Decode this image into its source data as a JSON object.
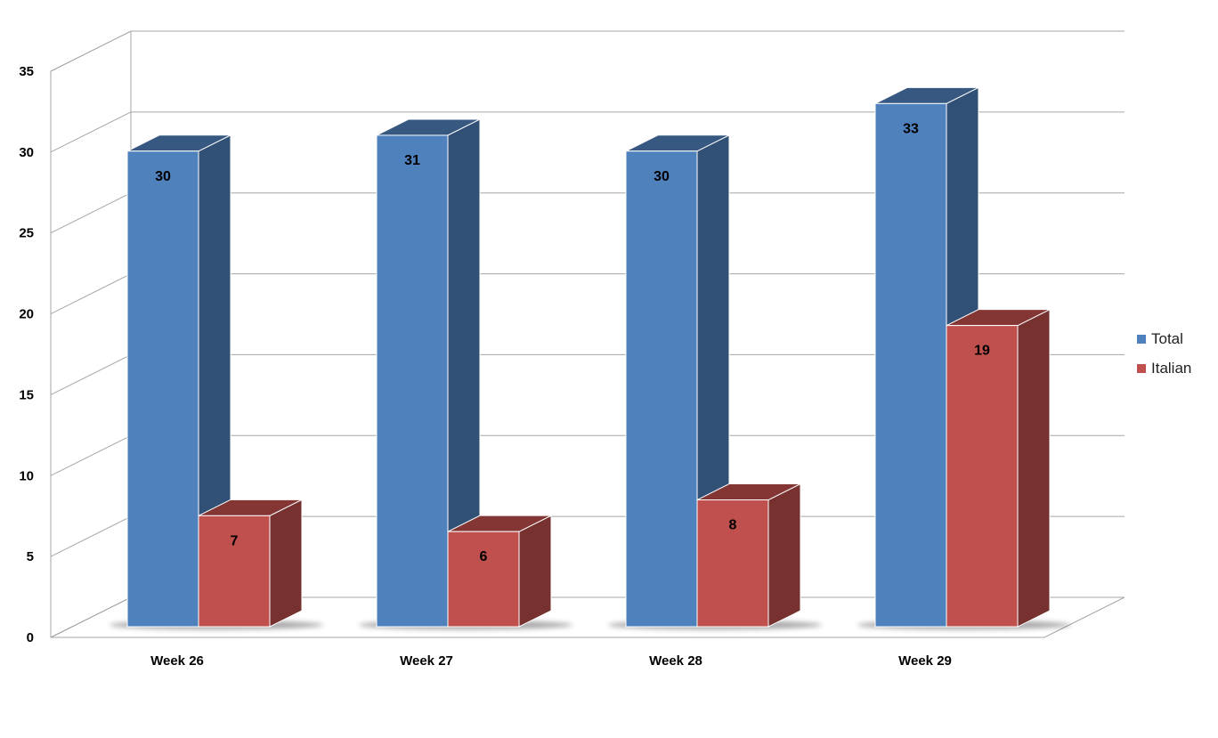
{
  "chart_data": {
    "type": "bar",
    "categories": [
      "Week 26",
      "Week 27",
      "Week 28",
      "Week 29"
    ],
    "series": [
      {
        "name": "Total",
        "values": [
          30,
          31,
          30,
          33
        ],
        "color": "#4F81BD"
      },
      {
        "name": "Italian",
        "values": [
          7,
          6,
          8,
          19
        ],
        "color": "#C0504D"
      }
    ],
    "ylim": [
      0,
      35
    ],
    "yticks": [
      0,
      5,
      10,
      15,
      20,
      25,
      30,
      35
    ],
    "grid": true,
    "legend_position": "right",
    "data_labels": true,
    "style": "3d"
  }
}
